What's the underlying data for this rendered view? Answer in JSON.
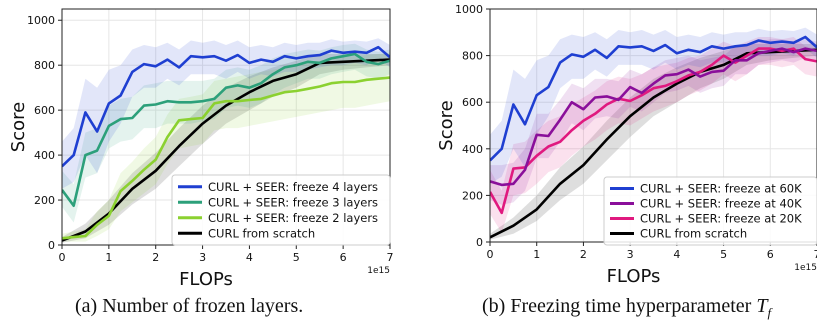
{
  "figure": {
    "captions": [
      {
        "text": "(a) Number of frozen layers.",
        "math": ""
      },
      {
        "text": "(b) Freezing time hyperparameter ",
        "math": "T",
        "sub": "f"
      }
    ]
  },
  "chart_data": [
    {
      "type": "line",
      "xlabel": "FLOPs",
      "ylabel": "Score",
      "x_multiplier_label": "1e15",
      "xlim": [
        0,
        7
      ],
      "ylim": [
        0,
        1050
      ],
      "xticks": [
        "0",
        "1",
        "2",
        "3",
        "4",
        "5",
        "6",
        "7"
      ],
      "xtick_values": [
        0,
        1,
        2,
        3,
        4,
        5,
        6,
        7
      ],
      "yticks": [
        "0",
        "200",
        "400",
        "600",
        "800",
        "1000"
      ],
      "ytick_values": [
        0,
        200,
        400,
        600,
        800,
        1000
      ],
      "grid": true,
      "legend_position": "lower-right",
      "series": [
        {
          "name": "CURL + SEER: freeze 4 layers",
          "color": "#1f3fd1",
          "x": [
            0,
            0.25,
            0.5,
            0.75,
            1.0,
            1.25,
            1.5,
            1.75,
            2.0,
            2.25,
            2.5,
            2.75,
            3.0,
            3.25,
            3.5,
            3.75,
            4.0,
            4.25,
            4.5,
            4.75,
            5.0,
            5.25,
            5.5,
            5.75,
            6.0,
            6.25,
            6.5,
            6.75,
            7.0
          ],
          "y": [
            350,
            400,
            590,
            505,
            630,
            665,
            770,
            805,
            795,
            825,
            790,
            840,
            835,
            840,
            820,
            845,
            810,
            825,
            815,
            840,
            830,
            840,
            845,
            865,
            855,
            860,
            855,
            880,
            835
          ],
          "band_low": [
            250,
            280,
            400,
            320,
            460,
            540,
            660,
            700,
            700,
            740,
            710,
            760,
            760,
            760,
            740,
            770,
            740,
            760,
            750,
            770,
            770,
            780,
            790,
            800,
            800,
            810,
            800,
            830,
            790
          ],
          "band_high": [
            460,
            520,
            740,
            700,
            780,
            800,
            870,
            890,
            880,
            900,
            870,
            910,
            900,
            910,
            890,
            910,
            880,
            890,
            880,
            900,
            890,
            900,
            900,
            915,
            905,
            910,
            905,
            920,
            890
          ]
        },
        {
          "name": "CURL + SEER: freeze 3 layers",
          "color": "#2ca07a",
          "x": [
            0,
            0.25,
            0.5,
            0.75,
            1.0,
            1.25,
            1.5,
            1.75,
            2.0,
            2.25,
            2.5,
            2.75,
            3.0,
            3.25,
            3.5,
            3.75,
            4.0,
            4.25,
            4.5,
            4.75,
            5.0,
            5.25,
            5.5,
            5.75,
            6.0,
            6.25,
            6.5,
            6.75,
            7.0
          ],
          "y": [
            245,
            175,
            400,
            420,
            530,
            560,
            565,
            620,
            625,
            640,
            635,
            635,
            640,
            650,
            700,
            710,
            700,
            720,
            760,
            790,
            800,
            815,
            810,
            830,
            840,
            850,
            815,
            805,
            820
          ],
          "band_low": [
            170,
            100,
            300,
            320,
            430,
            460,
            470,
            520,
            520,
            540,
            540,
            540,
            550,
            560,
            610,
            620,
            610,
            630,
            670,
            700,
            720,
            740,
            740,
            760,
            770,
            780,
            750,
            740,
            760
          ],
          "band_high": [
            330,
            270,
            500,
            520,
            620,
            650,
            660,
            710,
            720,
            730,
            730,
            730,
            730,
            740,
            780,
            790,
            780,
            800,
            830,
            850,
            860,
            870,
            865,
            880,
            890,
            895,
            870,
            860,
            870
          ]
        },
        {
          "name": "CURL + SEER: freeze 2 layers",
          "color": "#8bd130",
          "x": [
            0,
            0.25,
            0.5,
            0.75,
            1.0,
            1.25,
            1.5,
            1.75,
            2.0,
            2.25,
            2.5,
            2.75,
            3.0,
            3.25,
            3.5,
            3.75,
            4.0,
            4.25,
            4.5,
            4.75,
            5.0,
            5.25,
            5.5,
            5.75,
            6.0,
            6.25,
            6.5,
            6.75,
            7.0
          ],
          "y": [
            30,
            35,
            40,
            90,
            130,
            240,
            285,
            335,
            380,
            480,
            555,
            560,
            565,
            630,
            640,
            640,
            645,
            650,
            665,
            680,
            685,
            695,
            705,
            720,
            725,
            725,
            735,
            740,
            745
          ],
          "band_low": [
            15,
            15,
            15,
            40,
            70,
            150,
            190,
            230,
            270,
            360,
            430,
            440,
            450,
            510,
            520,
            520,
            530,
            540,
            550,
            560,
            570,
            580,
            590,
            600,
            610,
            610,
            620,
            630,
            640
          ],
          "band_high": [
            50,
            60,
            70,
            150,
            200,
            320,
            370,
            430,
            480,
            580,
            650,
            660,
            670,
            730,
            740,
            750,
            760,
            770,
            780,
            790,
            800,
            810,
            820,
            830,
            840,
            840,
            845,
            850,
            855
          ]
        },
        {
          "name": "CURL from scratch",
          "color": "#000000",
          "x": [
            0,
            0.5,
            1.0,
            1.5,
            2.0,
            2.5,
            3.0,
            3.5,
            4.0,
            4.5,
            5.0,
            5.5,
            6.0,
            6.5,
            7.0
          ],
          "y": [
            20,
            60,
            140,
            250,
            330,
            440,
            540,
            620,
            680,
            730,
            760,
            810,
            815,
            820,
            825
          ],
          "band_low": [
            10,
            30,
            90,
            180,
            250,
            350,
            450,
            540,
            600,
            660,
            700,
            760,
            780,
            790,
            800
          ],
          "band_high": [
            35,
            95,
            200,
            320,
            410,
            520,
            620,
            700,
            750,
            790,
            820,
            850,
            850,
            850,
            850
          ]
        }
      ]
    },
    {
      "type": "line",
      "xlabel": "FLOPs",
      "ylabel": "Score",
      "x_multiplier_label": "1e15",
      "xlim": [
        0,
        7
      ],
      "ylim": [
        0,
        1000
      ],
      "xticks": [
        "0",
        "1",
        "2",
        "3",
        "4",
        "5",
        "6",
        "7"
      ],
      "xtick_values": [
        0,
        1,
        2,
        3,
        4,
        5,
        6,
        7
      ],
      "yticks": [
        "0",
        "200",
        "400",
        "600",
        "800",
        "1000"
      ],
      "ytick_values": [
        0,
        200,
        400,
        600,
        800,
        1000
      ],
      "grid": true,
      "legend_position": "lower-right",
      "series": [
        {
          "name": "CURL + SEER: freeze at 60K",
          "color": "#1f3fd1",
          "x": [
            0,
            0.25,
            0.5,
            0.75,
            1.0,
            1.25,
            1.5,
            1.75,
            2.0,
            2.25,
            2.5,
            2.75,
            3.0,
            3.25,
            3.5,
            3.75,
            4.0,
            4.25,
            4.5,
            4.75,
            5.0,
            5.25,
            5.5,
            5.75,
            6.0,
            6.25,
            6.5,
            6.75,
            7.0
          ],
          "y": [
            350,
            400,
            590,
            505,
            630,
            665,
            770,
            805,
            795,
            825,
            790,
            840,
            835,
            840,
            820,
            845,
            810,
            825,
            815,
            840,
            830,
            840,
            845,
            865,
            855,
            860,
            855,
            880,
            835
          ],
          "band_low": [
            250,
            280,
            400,
            320,
            460,
            540,
            660,
            700,
            700,
            740,
            710,
            760,
            760,
            760,
            740,
            770,
            740,
            760,
            750,
            770,
            770,
            780,
            790,
            800,
            800,
            810,
            800,
            830,
            790
          ],
          "band_high": [
            460,
            520,
            740,
            700,
            780,
            800,
            870,
            890,
            880,
            900,
            870,
            910,
            900,
            910,
            890,
            910,
            880,
            890,
            880,
            900,
            890,
            900,
            900,
            915,
            905,
            910,
            905,
            920,
            890
          ]
        },
        {
          "name": "CURL + SEER: freeze at 40K",
          "color": "#8a0f9a",
          "x": [
            0,
            0.25,
            0.5,
            0.75,
            1.0,
            1.25,
            1.5,
            1.75,
            2.0,
            2.25,
            2.5,
            2.75,
            3.0,
            3.25,
            3.5,
            3.75,
            4.0,
            4.25,
            4.5,
            4.75,
            5.0,
            5.25,
            5.5,
            5.75,
            6.0,
            6.25,
            6.5,
            6.75,
            7.0
          ],
          "y": [
            260,
            245,
            250,
            310,
            460,
            455,
            525,
            600,
            570,
            620,
            625,
            610,
            665,
            640,
            680,
            715,
            720,
            740,
            710,
            730,
            735,
            780,
            780,
            810,
            820,
            830,
            815,
            830,
            820
          ],
          "band_low": [
            180,
            160,
            170,
            220,
            360,
            360,
            430,
            510,
            480,
            530,
            540,
            530,
            580,
            560,
            600,
            640,
            650,
            670,
            640,
            660,
            670,
            720,
            720,
            760,
            770,
            780,
            770,
            790,
            780
          ],
          "band_high": [
            330,
            330,
            340,
            400,
            550,
            550,
            610,
            680,
            660,
            700,
            700,
            690,
            740,
            720,
            750,
            780,
            790,
            800,
            780,
            790,
            800,
            840,
            840,
            860,
            870,
            870,
            860,
            870,
            860
          ]
        },
        {
          "name": "CURL + SEER: freeze at 20K",
          "color": "#e0197f",
          "x": [
            0,
            0.25,
            0.5,
            0.75,
            1.0,
            1.25,
            1.5,
            1.75,
            2.0,
            2.25,
            2.5,
            2.75,
            3.0,
            3.25,
            3.5,
            3.75,
            4.0,
            4.25,
            4.5,
            4.75,
            5.0,
            5.25,
            5.5,
            5.75,
            6.0,
            6.25,
            6.5,
            6.75,
            7.0
          ],
          "y": [
            215,
            125,
            315,
            320,
            370,
            410,
            430,
            480,
            520,
            550,
            590,
            615,
            605,
            630,
            660,
            670,
            690,
            715,
            730,
            760,
            800,
            770,
            800,
            830,
            830,
            820,
            830,
            785,
            775
          ],
          "band_low": [
            120,
            40,
            200,
            210,
            250,
            300,
            320,
            370,
            410,
            440,
            480,
            510,
            500,
            530,
            560,
            580,
            600,
            630,
            650,
            680,
            720,
            690,
            720,
            760,
            760,
            750,
            760,
            720,
            710
          ],
          "band_high": [
            310,
            220,
            420,
            430,
            480,
            520,
            540,
            590,
            620,
            650,
            690,
            710,
            700,
            720,
            750,
            760,
            770,
            790,
            800,
            830,
            860,
            840,
            860,
            880,
            880,
            870,
            880,
            840,
            830
          ]
        },
        {
          "name": "CURL from scratch",
          "color": "#000000",
          "x": [
            0,
            0.5,
            1.0,
            1.5,
            2.0,
            2.5,
            3.0,
            3.5,
            4.0,
            4.5,
            5.0,
            5.5,
            6.0,
            6.5,
            7.0
          ],
          "y": [
            20,
            70,
            140,
            250,
            330,
            440,
            540,
            620,
            680,
            730,
            760,
            810,
            815,
            820,
            825
          ],
          "band_low": [
            10,
            35,
            90,
            180,
            250,
            350,
            450,
            540,
            600,
            660,
            700,
            760,
            780,
            790,
            800
          ],
          "band_high": [
            35,
            105,
            200,
            320,
            410,
            520,
            620,
            700,
            750,
            790,
            820,
            850,
            850,
            850,
            850
          ]
        }
      ]
    }
  ]
}
